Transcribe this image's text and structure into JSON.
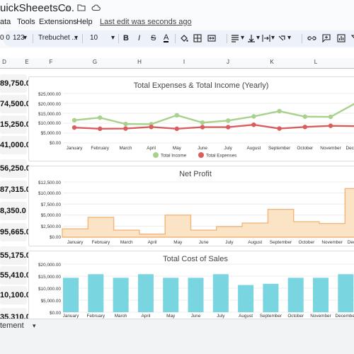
{
  "app": {
    "title": "uickSheeetsCo.",
    "star_icon": "star-icon",
    "folder_icon": "folder-icon",
    "cloud_icon": "cloud-icon"
  },
  "menu": {
    "items": [
      "ata",
      "Tools",
      "Extensions",
      "Help"
    ],
    "last_edit": "Last edit was seconds ago"
  },
  "toolbar": {
    "number_format": "0 0",
    "format_123": "123",
    "font": "Trebuchet ...",
    "font_size": "10",
    "bold": "B",
    "italic": "I",
    "strike": "S",
    "text_color": "A"
  },
  "columns": [
    "D",
    "E",
    "F",
    "G",
    "H",
    "I",
    "J",
    "K",
    "L"
  ],
  "cell_values": [
    "89,750.0",
    "74,500.0",
    "15,250.0",
    "41,000.0",
    "56,250.0",
    "87,315.0",
    "8,350.0",
    "95,665.0",
    "55,175.0",
    "55,410.0",
    "10,100.0",
    "35,310.0"
  ],
  "sheet_tab": "tement",
  "colors": {
    "income": "#a9d18e",
    "expenses": "#d95d5d",
    "profit_fill": "#fbe3c5",
    "profit_stroke": "#f2b67a",
    "cost": "#79d5df"
  },
  "charts": {
    "months": [
      "January",
      "February",
      "March",
      "April",
      "May",
      "June",
      "July",
      "August",
      "September",
      "October",
      "November",
      "December"
    ],
    "ex": {
      "title": "Total Expenses & Total Income (Yearly)",
      "ticks": [
        "$25,000.00",
        "$20,000.00",
        "$15,000.00",
        "$10,000.00",
        "$5,000.00",
        "$0.00"
      ],
      "legend_income": "Total Income",
      "legend_expenses": "Total Expenses"
    },
    "profit": {
      "title": "Net Profit",
      "ticks": [
        "$12,500.00",
        "$10,000.00",
        "$7,500.00",
        "$5,000.00",
        "$2,500.00",
        "$0.00"
      ]
    },
    "cost": {
      "title": "Total Cost of Sales",
      "ticks": [
        "$20,000.00",
        "$15,000.00",
        "$10,000.00",
        "$5,000.00",
        "$0.00"
      ]
    }
  },
  "chart_data": [
    {
      "type": "line",
      "title": "Total Expenses & Total Income (Yearly)",
      "categories": [
        "January",
        "February",
        "March",
        "April",
        "May",
        "June",
        "July",
        "August",
        "September",
        "October",
        "November",
        "December"
      ],
      "ylim": [
        0,
        25000
      ],
      "legend": "bottom",
      "series": [
        {
          "name": "Total Income",
          "values": [
            11500,
            12800,
            9600,
            9500,
            14000,
            10300,
            11300,
            13400,
            16100,
            13300,
            13200,
            20300
          ]
        },
        {
          "name": "Total Expenses",
          "values": [
            7800,
            7200,
            7300,
            8100,
            7200,
            8000,
            8000,
            9200,
            7300,
            8100,
            8700,
            8500
          ]
        }
      ]
    },
    {
      "type": "area",
      "title": "Net Profit",
      "categories": [
        "January",
        "February",
        "March",
        "April",
        "May",
        "June",
        "July",
        "August",
        "September",
        "October",
        "November",
        "December"
      ],
      "ylim": [
        0,
        12500
      ],
      "values": [
        1900,
        4500,
        1600,
        700,
        5000,
        1600,
        2400,
        3200,
        6300,
        3500,
        3100,
        11000
      ]
    },
    {
      "type": "bar",
      "title": "Total Cost of Sales",
      "categories": [
        "January",
        "February",
        "March",
        "April",
        "May",
        "June",
        "July",
        "August",
        "September",
        "October",
        "November",
        "December"
      ],
      "ylim": [
        0,
        20000
      ],
      "values": [
        14300,
        15800,
        14300,
        15800,
        14300,
        14300,
        15800,
        11300,
        11800,
        14300,
        14300,
        15800
      ]
    }
  ]
}
